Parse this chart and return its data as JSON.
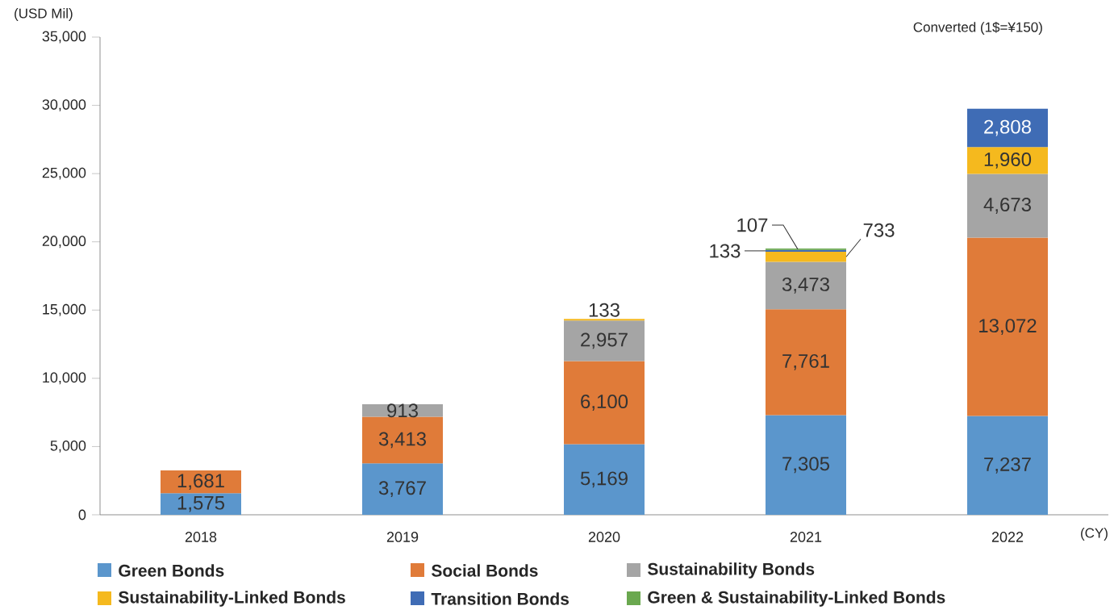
{
  "chart_data": {
    "type": "bar",
    "stacked": true,
    "ylabel": "(USD Mil)",
    "xlabel": "(CY)",
    "annotations": [
      "Converted (1$=¥150)"
    ],
    "categories": [
      "2018",
      "2019",
      "2020",
      "2021",
      "2022"
    ],
    "ylim": [
      0,
      35000
    ],
    "yticks": [
      0,
      {
        "value": 5000,
        "label": "5,000"
      },
      {
        "value": 10000,
        "label": "10,000"
      },
      {
        "value": 15000,
        "label": "15,000"
      },
      {
        "value": 20000,
        "label": "20,000"
      },
      {
        "value": 25000,
        "label": "25,000"
      },
      {
        "value": 30000,
        "label": "30,000"
      },
      {
        "value": 35000,
        "label": "35,000"
      }
    ],
    "grid": false,
    "legend": "bottom",
    "series": [
      {
        "name": "Green Bonds",
        "color": "#5b96cc",
        "values": [
          1575,
          3767,
          5169,
          7305,
          7237
        ],
        "value_labels": [
          "1,575",
          "3,767",
          "5,169",
          "7,305",
          "7,237"
        ]
      },
      {
        "name": "Social Bonds",
        "color": "#e07b39",
        "values": [
          1681,
          3413,
          6100,
          7761,
          13072
        ],
        "value_labels": [
          "1,681",
          "3,413",
          "6,100",
          "7,761",
          "13,072"
        ]
      },
      {
        "name": "Sustainability Bonds",
        "color": "#a5a5a5",
        "values": [
          null,
          913,
          2957,
          3473,
          4673
        ],
        "value_labels": [
          null,
          "913",
          "2,957",
          "3,473",
          "4,673"
        ]
      },
      {
        "name": "Sustainability-Linked Bonds",
        "color": "#f5b91e",
        "values": [
          null,
          null,
          133,
          733,
          1960
        ],
        "value_labels": [
          null,
          null,
          "133",
          "733",
          "1,960"
        ]
      },
      {
        "name": "Transition Bonds",
        "color": "#3f6cb5",
        "values": [
          null,
          null,
          null,
          133,
          2808
        ],
        "value_labels": [
          null,
          null,
          null,
          "133",
          "2,808"
        ]
      },
      {
        "name": "Green & Sustainability-Linked Bonds",
        "color": "#6aa84f",
        "values": [
          null,
          null,
          null,
          107,
          null
        ],
        "value_labels": [
          null,
          null,
          null,
          "107",
          null
        ]
      }
    ]
  }
}
